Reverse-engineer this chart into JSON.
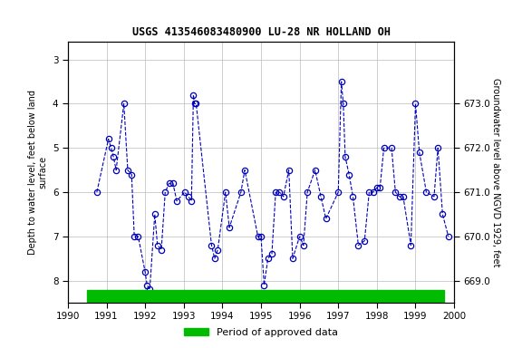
{
  "title": "USGS 413546083480900 LU-28 NR HOLLAND OH",
  "ylabel_left": "Depth to water level, feet below land\nsurface",
  "ylabel_right": "Groundwater level above NGVD 1929, feet",
  "xlim": [
    1990,
    2000
  ],
  "ylim_left": [
    8.5,
    2.6
  ],
  "ylim_right": [
    668.5,
    674.4
  ],
  "yticks_left": [
    3.0,
    4.0,
    5.0,
    6.0,
    7.0,
    8.0
  ],
  "yticks_right": [
    669.0,
    670.0,
    671.0,
    672.0,
    673.0
  ],
  "xticks": [
    1990,
    1991,
    1992,
    1993,
    1994,
    1995,
    1996,
    1997,
    1998,
    1999,
    2000
  ],
  "line_color": "#0000BB",
  "marker_color": "#0000BB",
  "grid_color": "#bbbbbb",
  "background": "#ffffff",
  "bar_color": "#00BB00",
  "legend_label": "Period of approved data",
  "data_x": [
    1990.75,
    1991.05,
    1991.12,
    1991.18,
    1991.25,
    1991.45,
    1991.55,
    1991.65,
    1991.72,
    1991.82,
    1992.0,
    1992.05,
    1992.12,
    1992.25,
    1992.32,
    1992.42,
    1992.52,
    1992.62,
    1992.72,
    1992.82,
    1993.02,
    1993.12,
    1993.2,
    1993.25,
    1993.28,
    1993.32,
    1993.72,
    1993.8,
    1993.88,
    1994.08,
    1994.18,
    1994.48,
    1994.58,
    1994.92,
    1995.0,
    1995.08,
    1995.18,
    1995.28,
    1995.38,
    1995.48,
    1995.58,
    1995.72,
    1995.82,
    1996.0,
    1996.1,
    1996.2,
    1996.4,
    1996.55,
    1996.68,
    1997.0,
    1997.08,
    1997.13,
    1997.18,
    1997.28,
    1997.38,
    1997.52,
    1997.68,
    1997.8,
    1997.9,
    1998.0,
    1998.08,
    1998.18,
    1998.38,
    1998.48,
    1998.58,
    1998.68,
    1998.88,
    1999.0,
    1999.1,
    1999.28,
    1999.48,
    1999.58,
    1999.7,
    1999.85
  ],
  "data_y": [
    6.0,
    4.8,
    5.0,
    5.2,
    5.5,
    4.0,
    5.5,
    5.6,
    7.0,
    7.0,
    7.8,
    8.1,
    8.2,
    6.5,
    7.2,
    7.3,
    6.0,
    5.8,
    5.8,
    6.2,
    6.0,
    6.1,
    6.2,
    3.8,
    4.0,
    4.0,
    7.2,
    7.5,
    7.3,
    6.0,
    6.8,
    6.0,
    5.5,
    7.0,
    7.0,
    8.1,
    7.5,
    7.4,
    6.0,
    6.0,
    6.1,
    5.5,
    7.5,
    7.0,
    7.2,
    6.0,
    5.5,
    6.1,
    6.6,
    6.0,
    3.5,
    4.0,
    5.2,
    5.6,
    6.1,
    7.2,
    7.1,
    6.0,
    6.0,
    5.9,
    5.9,
    5.0,
    5.0,
    6.0,
    6.1,
    6.1,
    7.2,
    4.0,
    5.1,
    6.0,
    6.1,
    5.0,
    6.5,
    7.0
  ],
  "bar_xmin": 1990.5,
  "bar_xmax": 1999.75
}
